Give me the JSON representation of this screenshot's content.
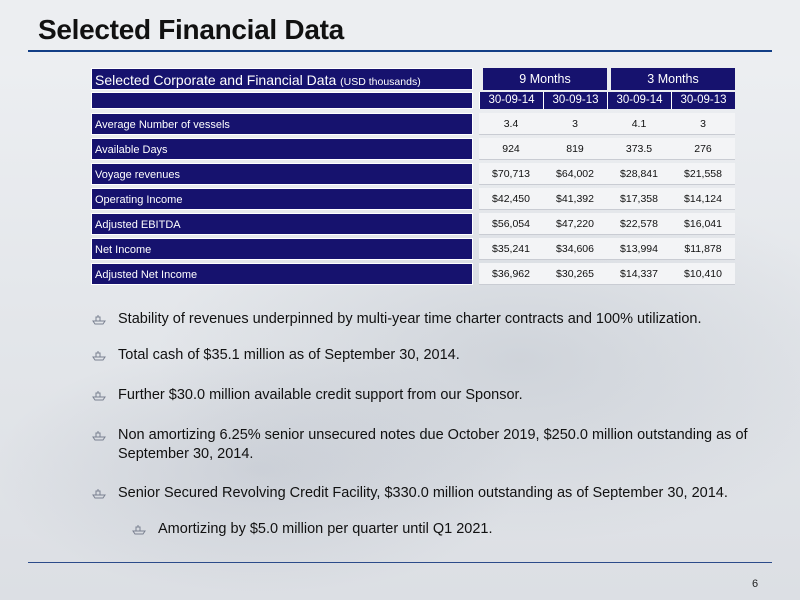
{
  "title": "Selected Financial Data",
  "table": {
    "heading": "Selected Corporate and Financial Data",
    "heading_unit": "(USD thousands)",
    "periods": [
      "9 Months",
      "3 Months"
    ],
    "dates": [
      "30-09-14",
      "30-09-13",
      "30-09-14",
      "30-09-13"
    ],
    "rows": [
      {
        "label": "Average Number of vessels",
        "values": [
          "3.4",
          "3",
          "4.1",
          "3"
        ]
      },
      {
        "label": "Available Days",
        "values": [
          "924",
          "819",
          "373.5",
          "276"
        ]
      },
      {
        "label": "Voyage revenues",
        "values": [
          "$70,713",
          "$64,002",
          "$28,841",
          "$21,558"
        ]
      },
      {
        "label": "Operating Income",
        "values": [
          "$42,450",
          "$41,392",
          "$17,358",
          "$14,124"
        ]
      },
      {
        "label": "Adjusted EBITDA",
        "values": [
          "$56,054",
          "$47,220",
          "$22,578",
          "$16,041"
        ]
      },
      {
        "label": "Net Income",
        "values": [
          "$35,241",
          "$34,606",
          "$13,994",
          "$11,878"
        ]
      },
      {
        "label": "Adjusted Net Income",
        "values": [
          "$36,962",
          "$30,265",
          "$14,337",
          "$10,410"
        ]
      }
    ]
  },
  "bullets": [
    {
      "text": "Stability of revenues underpinned by multi-year time charter contracts and 100% utilization.",
      "level": 1
    },
    {
      "text": "Total cash of $35.1 million as of September 30, 2014.",
      "level": 1
    },
    {
      "text": "Further $30.0 million available credit support from our Sponsor.",
      "level": 1
    },
    {
      "text": "Non amortizing 6.25% senior unsecured notes due October 2019, $250.0 million outstanding as of September 30, 2014.",
      "level": 1
    },
    {
      "text": "Senior Secured Revolving Credit Facility, $330.0 million outstanding as of September 30, 2014.",
      "level": 1
    },
    {
      "text": "Amortizing by $5.0 million per quarter until Q1 2021.",
      "level": 2
    }
  ],
  "bullet_icon": "ship-icon",
  "page_number": "6",
  "colors": {
    "navy": "#16126e",
    "rule": "#123e86"
  }
}
